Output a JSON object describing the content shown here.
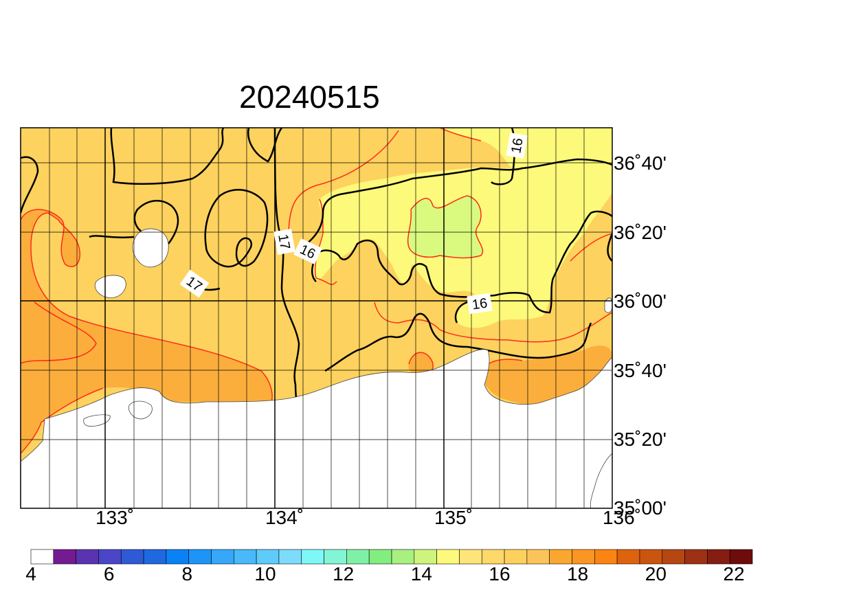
{
  "title": "20240515",
  "lon_labels": [
    "133˚",
    "134˚",
    "135˚",
    "136˚"
  ],
  "lat_labels": [
    "36˚40'",
    "36˚20'",
    "36˚00'",
    "35˚40'",
    "35˚20'",
    "35˚00'"
  ],
  "contour_labels": [
    "16",
    "17",
    "16",
    "17",
    "16"
  ],
  "colorbar": {
    "tick_labels": [
      "4",
      "6",
      "8",
      "10",
      "12",
      "14",
      "16",
      "18",
      "20",
      "22"
    ],
    "colors": [
      "#ffffff",
      "#751b91",
      "#5a34b0",
      "#4a46c8",
      "#2f5ad6",
      "#1f68e0",
      "#0a82f5",
      "#1d95f8",
      "#35a8f9",
      "#48b9fa",
      "#5fcbfb",
      "#7ddcfc",
      "#7ef7f7",
      "#83f5d6",
      "#7ff1a6",
      "#82ee80",
      "#a8f080",
      "#cff47e",
      "#fdf97a",
      "#fde57a",
      "#fdd86a",
      "#fdd15c",
      "#fbc45a",
      "#faa730",
      "#fb9622",
      "#fb8412",
      "#de630f",
      "#ca5510",
      "#b54712",
      "#9d3113",
      "#851d12",
      "#6e0b0b"
    ]
  },
  "colors": {
    "land": "#ffffff",
    "sst_16": "#fdf97a",
    "sst_15": "#d9fa7e",
    "sst_17": "#fdd25e",
    "sst_18": "#fbae3c",
    "sst_19": "#fba32c",
    "contour_major": "#000000",
    "contour_minor": "#ff2a1a"
  }
}
